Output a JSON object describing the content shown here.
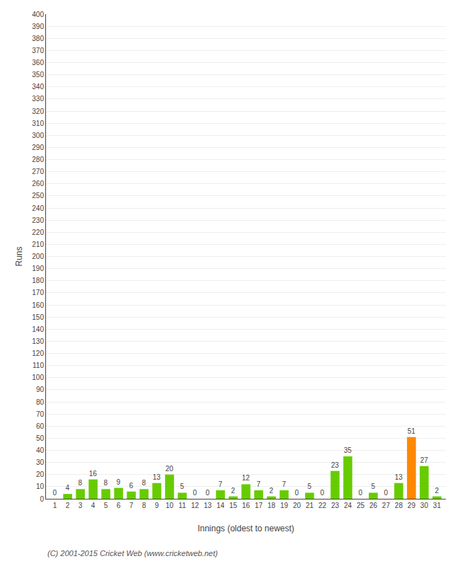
{
  "chart_data": {
    "type": "bar",
    "xlabel": "Innings (oldest to newest)",
    "ylabel": "Runs",
    "categories": [
      "1",
      "2",
      "3",
      "4",
      "5",
      "6",
      "7",
      "8",
      "9",
      "10",
      "11",
      "12",
      "13",
      "14",
      "15",
      "16",
      "17",
      "18",
      "19",
      "20",
      "21",
      "22",
      "23",
      "24",
      "25",
      "26",
      "27",
      "28",
      "29",
      "30",
      "31"
    ],
    "values": [
      0,
      4,
      8,
      16,
      8,
      9,
      6,
      8,
      13,
      20,
      5,
      0,
      0,
      7,
      2,
      12,
      7,
      2,
      7,
      0,
      5,
      0,
      23,
      35,
      0,
      5,
      0,
      13,
      51,
      27,
      2
    ],
    "colors": [
      "#66cc00",
      "#66cc00",
      "#66cc00",
      "#66cc00",
      "#66cc00",
      "#66cc00",
      "#66cc00",
      "#66cc00",
      "#66cc00",
      "#66cc00",
      "#66cc00",
      "#66cc00",
      "#66cc00",
      "#66cc00",
      "#66cc00",
      "#66cc00",
      "#66cc00",
      "#66cc00",
      "#66cc00",
      "#66cc00",
      "#66cc00",
      "#66cc00",
      "#66cc00",
      "#66cc00",
      "#66cc00",
      "#66cc00",
      "#66cc00",
      "#66cc00",
      "#ff8800",
      "#66cc00",
      "#66cc00"
    ],
    "ylim": [
      0,
      400
    ],
    "yticks": [
      0,
      10,
      20,
      30,
      40,
      50,
      60,
      70,
      80,
      90,
      100,
      110,
      120,
      130,
      140,
      150,
      160,
      170,
      180,
      190,
      200,
      210,
      220,
      230,
      240,
      250,
      260,
      270,
      280,
      290,
      300,
      310,
      320,
      330,
      340,
      350,
      360,
      370,
      380,
      390,
      400
    ],
    "grid": true,
    "data_labels": true,
    "annotations": [
      "(C) 2001-2015 Cricket Web (www.cricketweb.net)"
    ]
  }
}
